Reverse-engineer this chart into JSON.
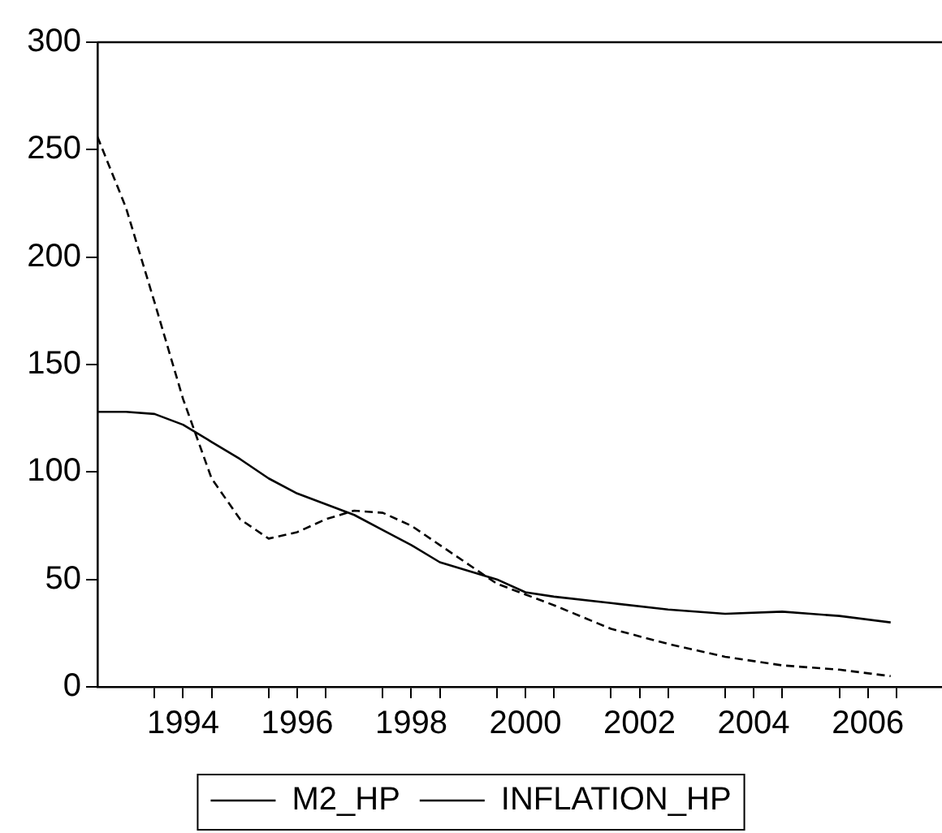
{
  "chart_data": {
    "type": "line",
    "x": [
      1993,
      1993.5,
      1994,
      1994.5,
      1995,
      1995.5,
      1996,
      1996.5,
      1997,
      1997.5,
      1998,
      1998.5,
      1999,
      2000,
      2000.5,
      2001,
      2002,
      2003,
      2004,
      2005,
      2005.5,
      2006,
      2006.9
    ],
    "series": [
      {
        "name": "M2_HP",
        "color": "#000000",
        "line_style": "solid",
        "values": [
          128,
          128,
          127,
          122,
          114,
          106,
          97,
          90,
          85,
          80,
          73,
          66,
          58,
          50,
          44,
          42,
          39,
          36,
          34,
          35,
          34,
          33,
          30
        ]
      },
      {
        "name": "INFLATION_HP",
        "color": "#000000",
        "line_style": "dashed",
        "values": [
          256,
          223,
          179,
          134,
          97,
          78,
          69,
          72,
          78,
          82,
          81,
          75,
          66,
          48,
          43,
          38,
          27,
          20,
          14,
          10,
          9,
          8,
          5
        ]
      }
    ],
    "xlim": [
      1993,
      2007.8
    ],
    "xticks": [
      {
        "value": 1994,
        "label": null
      },
      {
        "value": 1994.5,
        "label": "1994"
      },
      {
        "value": 1995,
        "label": null
      },
      {
        "value": 1996,
        "label": null
      },
      {
        "value": 1996.5,
        "label": "1996"
      },
      {
        "value": 1997,
        "label": null
      },
      {
        "value": 1998,
        "label": null
      },
      {
        "value": 1998.5,
        "label": "1998"
      },
      {
        "value": 1999,
        "label": null
      },
      {
        "value": 2000,
        "label": null
      },
      {
        "value": 2000.5,
        "label": "2000"
      },
      {
        "value": 2001,
        "label": null
      },
      {
        "value": 2002,
        "label": null
      },
      {
        "value": 2002.5,
        "label": "2002"
      },
      {
        "value": 2003,
        "label": null
      },
      {
        "value": 2004,
        "label": null
      },
      {
        "value": 2004.5,
        "label": "2004"
      },
      {
        "value": 2005,
        "label": null
      },
      {
        "value": 2006,
        "label": null
      },
      {
        "value": 2006.5,
        "label": "2006"
      },
      {
        "value": 2007,
        "label": null
      }
    ],
    "ylim": [
      0,
      300
    ],
    "yticks": [
      0,
      50,
      100,
      150,
      200,
      250,
      300
    ],
    "grid": false,
    "legend": "bottom",
    "marker": "none"
  }
}
